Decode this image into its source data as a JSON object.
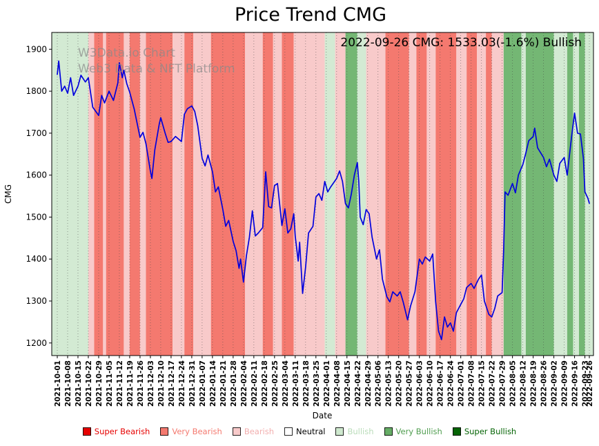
{
  "title": "Price Trend CMG",
  "annotation": "2022-09-26 CMG: 1533.03(-1.6%) Bullish",
  "watermark": {
    "line1": "W3Data.io Chart",
    "line2": "Web3 Data & NFT Platform"
  },
  "chart_data": {
    "type": "line",
    "title": "Price Trend CMG",
    "xlabel": "Date",
    "ylabel": "CMG",
    "ylim": [
      1170,
      1940
    ],
    "yticks": [
      1200,
      1300,
      1400,
      1500,
      1600,
      1700,
      1800,
      1900
    ],
    "grid": "dotted-vertical",
    "legend_position": "bottom",
    "x_total_days": 360,
    "x_tick_labels": [
      "2021-10-01",
      "2021-10-08",
      "2021-10-15",
      "2021-10-22",
      "2021-10-29",
      "2021-11-05",
      "2021-11-12",
      "2021-11-19",
      "2021-11-26",
      "2021-12-03",
      "2021-12-10",
      "2021-12-17",
      "2021-12-24",
      "2021-12-31",
      "2022-01-07",
      "2022-01-14",
      "2022-01-21",
      "2022-01-28",
      "2022-02-04",
      "2022-02-11",
      "2022-02-18",
      "2022-02-25",
      "2022-03-04",
      "2022-03-11",
      "2022-03-18",
      "2022-03-25",
      "2022-04-01",
      "2022-04-08",
      "2022-04-15",
      "2022-04-22",
      "2022-04-29",
      "2022-05-06",
      "2022-05-13",
      "2022-05-20",
      "2022-05-27",
      "2022-06-03",
      "2022-06-10",
      "2022-06-17",
      "2022-06-24",
      "2022-07-01",
      "2022-07-08",
      "2022-07-15",
      "2022-07-22",
      "2022-07-29",
      "2022-08-05",
      "2022-08-12",
      "2022-08-19",
      "2022-08-26",
      "2022-09-02",
      "2022-09-09",
      "2022-09-16",
      "2022-09-23",
      "2022-09-26"
    ],
    "x_tick_days": [
      0,
      7,
      14,
      21,
      28,
      35,
      42,
      49,
      56,
      63,
      70,
      77,
      84,
      91,
      98,
      105,
      112,
      119,
      126,
      133,
      140,
      147,
      154,
      161,
      168,
      175,
      182,
      189,
      196,
      203,
      210,
      217,
      224,
      231,
      238,
      245,
      252,
      259,
      266,
      273,
      280,
      287,
      294,
      301,
      308,
      315,
      322,
      329,
      336,
      343,
      350,
      357,
      360
    ],
    "band_colors": {
      "super_bearish": "#e60000",
      "very_bearish": "#f4796f",
      "bearish": "#f8caca",
      "neutral": "#ffffff",
      "bullish": "#d3ead3",
      "very_bullish": "#74b774",
      "super_bullish": "#056405"
    },
    "bands": [
      {
        "start": 0,
        "end": 21,
        "level": "bullish"
      },
      {
        "start": 21,
        "end": 25,
        "level": "bearish"
      },
      {
        "start": 25,
        "end": 31,
        "level": "very_bearish"
      },
      {
        "start": 31,
        "end": 33,
        "level": "bearish"
      },
      {
        "start": 33,
        "end": 45,
        "level": "very_bearish"
      },
      {
        "start": 45,
        "end": 49,
        "level": "bearish"
      },
      {
        "start": 49,
        "end": 56,
        "level": "very_bearish"
      },
      {
        "start": 56,
        "end": 60,
        "level": "bearish"
      },
      {
        "start": 60,
        "end": 78,
        "level": "very_bearish"
      },
      {
        "start": 78,
        "end": 86,
        "level": "bearish"
      },
      {
        "start": 86,
        "end": 92,
        "level": "very_bearish"
      },
      {
        "start": 92,
        "end": 104,
        "level": "bearish"
      },
      {
        "start": 104,
        "end": 127,
        "level": "very_bearish"
      },
      {
        "start": 127,
        "end": 139,
        "level": "bearish"
      },
      {
        "start": 139,
        "end": 146,
        "level": "very_bearish"
      },
      {
        "start": 146,
        "end": 152,
        "level": "bearish"
      },
      {
        "start": 152,
        "end": 160,
        "level": "very_bearish"
      },
      {
        "start": 160,
        "end": 181,
        "level": "bearish"
      },
      {
        "start": 181,
        "end": 188,
        "level": "bullish"
      },
      {
        "start": 188,
        "end": 195,
        "level": "bearish"
      },
      {
        "start": 195,
        "end": 203,
        "level": "very_bullish"
      },
      {
        "start": 203,
        "end": 209,
        "level": "bullish"
      },
      {
        "start": 209,
        "end": 222,
        "level": "bearish"
      },
      {
        "start": 222,
        "end": 238,
        "level": "very_bearish"
      },
      {
        "start": 238,
        "end": 243,
        "level": "bearish"
      },
      {
        "start": 243,
        "end": 250,
        "level": "very_bearish"
      },
      {
        "start": 250,
        "end": 256,
        "level": "bearish"
      },
      {
        "start": 256,
        "end": 270,
        "level": "very_bearish"
      },
      {
        "start": 270,
        "end": 277,
        "level": "bearish"
      },
      {
        "start": 277,
        "end": 284,
        "level": "very_bearish"
      },
      {
        "start": 284,
        "end": 290,
        "level": "bearish"
      },
      {
        "start": 290,
        "end": 294,
        "level": "very_bearish"
      },
      {
        "start": 294,
        "end": 302,
        "level": "bearish"
      },
      {
        "start": 302,
        "end": 314,
        "level": "very_bullish"
      },
      {
        "start": 314,
        "end": 317,
        "level": "bullish"
      },
      {
        "start": 317,
        "end": 336,
        "level": "very_bullish"
      },
      {
        "start": 336,
        "end": 345,
        "level": "bullish"
      },
      {
        "start": 345,
        "end": 349,
        "level": "very_bullish"
      },
      {
        "start": 349,
        "end": 353,
        "level": "bullish"
      },
      {
        "start": 353,
        "end": 357,
        "level": "very_bullish"
      },
      {
        "start": 357,
        "end": 360,
        "level": "bullish"
      }
    ],
    "series": [
      {
        "name": "CMG",
        "color": "#0000dd",
        "points": [
          [
            0,
            1840
          ],
          [
            1,
            1872
          ],
          [
            3,
            1800
          ],
          [
            5,
            1812
          ],
          [
            7,
            1795
          ],
          [
            9,
            1832
          ],
          [
            11,
            1790
          ],
          [
            14,
            1812
          ],
          [
            16,
            1838
          ],
          [
            19,
            1822
          ],
          [
            21,
            1832
          ],
          [
            24,
            1762
          ],
          [
            28,
            1742
          ],
          [
            30,
            1790
          ],
          [
            32,
            1772
          ],
          [
            35,
            1800
          ],
          [
            38,
            1778
          ],
          [
            41,
            1820
          ],
          [
            42,
            1868
          ],
          [
            44,
            1832
          ],
          [
            45,
            1850
          ],
          [
            47,
            1818
          ],
          [
            49,
            1798
          ],
          [
            52,
            1758
          ],
          [
            56,
            1690
          ],
          [
            58,
            1702
          ],
          [
            60,
            1675
          ],
          [
            63,
            1610
          ],
          [
            64,
            1592
          ],
          [
            66,
            1660
          ],
          [
            69,
            1722
          ],
          [
            70,
            1737
          ],
          [
            73,
            1700
          ],
          [
            75,
            1678
          ],
          [
            77,
            1680
          ],
          [
            80,
            1692
          ],
          [
            84,
            1680
          ],
          [
            86,
            1745
          ],
          [
            88,
            1758
          ],
          [
            91,
            1765
          ],
          [
            93,
            1752
          ],
          [
            95,
            1718
          ],
          [
            98,
            1640
          ],
          [
            100,
            1622
          ],
          [
            102,
            1648
          ],
          [
            105,
            1608
          ],
          [
            107,
            1560
          ],
          [
            109,
            1572
          ],
          [
            112,
            1518
          ],
          [
            114,
            1478
          ],
          [
            116,
            1492
          ],
          [
            119,
            1442
          ],
          [
            121,
            1420
          ],
          [
            123,
            1378
          ],
          [
            124,
            1400
          ],
          [
            126,
            1345
          ],
          [
            128,
            1408
          ],
          [
            130,
            1452
          ],
          [
            132,
            1515
          ],
          [
            134,
            1455
          ],
          [
            136,
            1462
          ],
          [
            139,
            1475
          ],
          [
            141,
            1608
          ],
          [
            143,
            1525
          ],
          [
            145,
            1522
          ],
          [
            147,
            1575
          ],
          [
            149,
            1580
          ],
          [
            152,
            1480
          ],
          [
            154,
            1520
          ],
          [
            156,
            1462
          ],
          [
            158,
            1472
          ],
          [
            160,
            1508
          ],
          [
            161,
            1455
          ],
          [
            163,
            1395
          ],
          [
            164,
            1440
          ],
          [
            166,
            1318
          ],
          [
            168,
            1380
          ],
          [
            170,
            1462
          ],
          [
            173,
            1478
          ],
          [
            175,
            1548
          ],
          [
            177,
            1556
          ],
          [
            179,
            1540
          ],
          [
            181,
            1585
          ],
          [
            183,
            1560
          ],
          [
            185,
            1572
          ],
          [
            187,
            1582
          ],
          [
            189,
            1592
          ],
          [
            191,
            1610
          ],
          [
            193,
            1585
          ],
          [
            195,
            1532
          ],
          [
            197,
            1522
          ],
          [
            199,
            1556
          ],
          [
            201,
            1600
          ],
          [
            203,
            1630
          ],
          [
            204,
            1585
          ],
          [
            205,
            1500
          ],
          [
            207,
            1482
          ],
          [
            209,
            1518
          ],
          [
            211,
            1508
          ],
          [
            213,
            1452
          ],
          [
            216,
            1400
          ],
          [
            218,
            1422
          ],
          [
            220,
            1352
          ],
          [
            223,
            1310
          ],
          [
            225,
            1298
          ],
          [
            227,
            1322
          ],
          [
            230,
            1312
          ],
          [
            232,
            1322
          ],
          [
            234,
            1298
          ],
          [
            237,
            1255
          ],
          [
            239,
            1288
          ],
          [
            242,
            1322
          ],
          [
            245,
            1400
          ],
          [
            247,
            1388
          ],
          [
            249,
            1405
          ],
          [
            252,
            1395
          ],
          [
            254,
            1412
          ],
          [
            256,
            1298
          ],
          [
            258,
            1228
          ],
          [
            260,
            1208
          ],
          [
            262,
            1262
          ],
          [
            264,
            1238
          ],
          [
            266,
            1248
          ],
          [
            268,
            1228
          ],
          [
            270,
            1272
          ],
          [
            273,
            1292
          ],
          [
            275,
            1305
          ],
          [
            277,
            1332
          ],
          [
            280,
            1342
          ],
          [
            282,
            1330
          ],
          [
            285,
            1352
          ],
          [
            287,
            1362
          ],
          [
            289,
            1300
          ],
          [
            292,
            1268
          ],
          [
            294,
            1262
          ],
          [
            296,
            1282
          ],
          [
            298,
            1312
          ],
          [
            301,
            1320
          ],
          [
            302,
            1420
          ],
          [
            303,
            1560
          ],
          [
            305,
            1552
          ],
          [
            308,
            1580
          ],
          [
            310,
            1558
          ],
          [
            312,
            1600
          ],
          [
            315,
            1625
          ],
          [
            317,
            1652
          ],
          [
            319,
            1682
          ],
          [
            322,
            1692
          ],
          [
            323,
            1712
          ],
          [
            325,
            1665
          ],
          [
            329,
            1642
          ],
          [
            331,
            1620
          ],
          [
            333,
            1638
          ],
          [
            336,
            1600
          ],
          [
            338,
            1585
          ],
          [
            340,
            1628
          ],
          [
            343,
            1642
          ],
          [
            345,
            1600
          ],
          [
            348,
            1692
          ],
          [
            350,
            1748
          ],
          [
            352,
            1700
          ],
          [
            354,
            1698
          ],
          [
            356,
            1640
          ],
          [
            357,
            1560
          ],
          [
            359,
            1545
          ],
          [
            360,
            1533
          ]
        ]
      }
    ]
  },
  "legend": {
    "items": [
      {
        "label": "Super Bearish",
        "color": "#e60000",
        "text_color": "#e60000"
      },
      {
        "label": "Very Bearish",
        "color": "#f4796f",
        "text_color": "#f4796f"
      },
      {
        "label": "Bearish",
        "color": "#f8caca",
        "text_color": "#f2aeae"
      },
      {
        "label": "Neutral",
        "color": "#ffffff",
        "text_color": "#000000"
      },
      {
        "label": "Bullish",
        "color": "#cfe9cf",
        "text_color": "#b9dcb9"
      },
      {
        "label": "Very Bullish",
        "color": "#66ad66",
        "text_color": "#4f9d4f"
      },
      {
        "label": "Super Bullish",
        "color": "#056405",
        "text_color": "#056405"
      }
    ]
  }
}
